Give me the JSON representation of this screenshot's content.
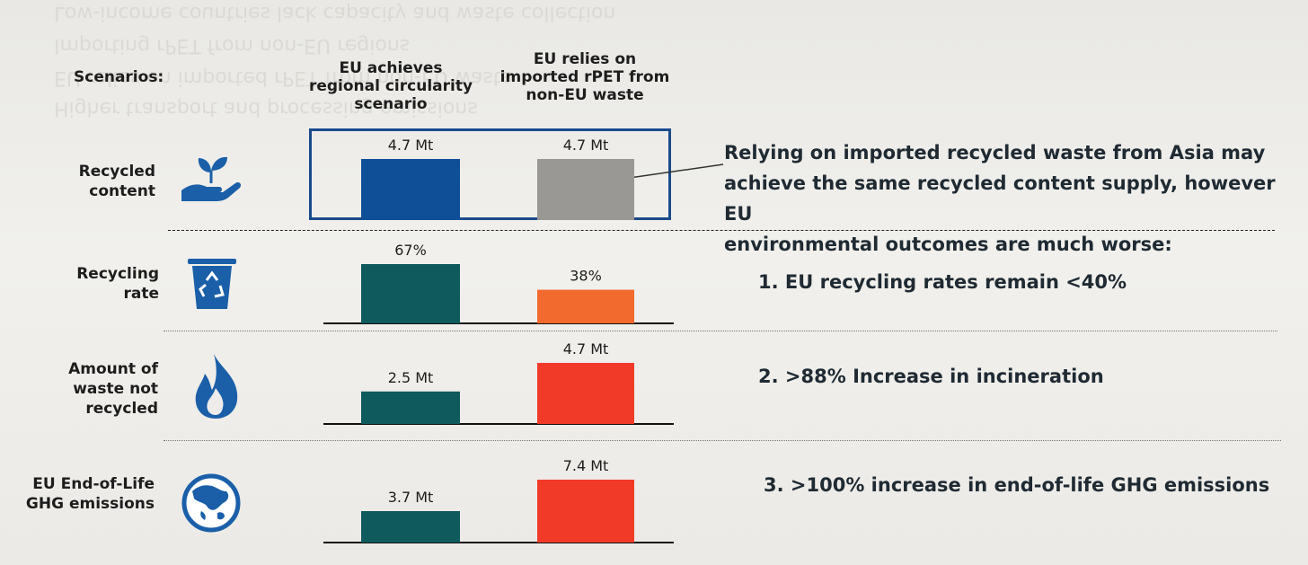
{
  "chart_data": {
    "type": "bar",
    "scenarios": [
      "EU achieves regional circularity scenario",
      "EU relies on imported rPET from non-EU waste"
    ],
    "header_label": "Scenarios:",
    "rows": [
      {
        "label": [
          "Recycled",
          "content"
        ],
        "icon": "hand-sprout-icon",
        "values": [
          4.7,
          4.7
        ],
        "value_labels": [
          "4.7 Mt",
          "4.7 Mt"
        ],
        "unit": "Mt",
        "colors": [
          "#0f4f98",
          "#9a9894"
        ]
      },
      {
        "label": [
          "Recycling",
          "rate"
        ],
        "icon": "recycling-bin-icon",
        "values": [
          67,
          38
        ],
        "value_labels": [
          "67%",
          "38%"
        ],
        "unit": "%",
        "colors": [
          "#0f5a5c",
          "#f26a2e"
        ]
      },
      {
        "label": [
          "Amount of",
          "waste not",
          "recycled"
        ],
        "icon": "flame-icon",
        "values": [
          2.5,
          4.7
        ],
        "value_labels": [
          "2.5 Mt",
          "4.7 Mt"
        ],
        "unit": "Mt",
        "colors": [
          "#0f5a5c",
          "#f23a28"
        ]
      },
      {
        "label": [
          "EU End-of-Life",
          "GHG emissions"
        ],
        "icon": "globe-icon",
        "values": [
          3.7,
          7.4
        ],
        "value_labels": [
          "3.7 Mt",
          "7.4 Mt"
        ],
        "unit": "Mt",
        "colors": [
          "#0f5a5c",
          "#f23a28"
        ]
      }
    ]
  },
  "headers": {
    "title": "Scenarios:",
    "col1": [
      "EU achieves",
      "regional circularity",
      "scenario"
    ],
    "col2": [
      "EU relies on",
      "imported rPET from",
      "non-EU waste"
    ]
  },
  "annotation": {
    "text": [
      "Relying on imported recycled waste from Asia may",
      "achieve the same recycled content supply, however EU",
      "environmental outcomes are much worse:"
    ]
  },
  "outcomes": [
    "1.   EU recycling rates remain <40%",
    "2.   >88% Increase in incineration",
    "3.   >100% increase in end-of-life GHG emissions"
  ],
  "background_ghost_text": [
    "Low-income countries lack capacity and waste collection",
    "Importing rPET from non-EU regions",
    "EU relies on imported rPET from non-EU waste",
    "Higher transport and processing emissions"
  ],
  "colors": {
    "blue": "#0f4f98",
    "teal": "#0f5a5c",
    "grey": "#9a9894",
    "orange": "#f26a2e",
    "red": "#f23a28"
  }
}
